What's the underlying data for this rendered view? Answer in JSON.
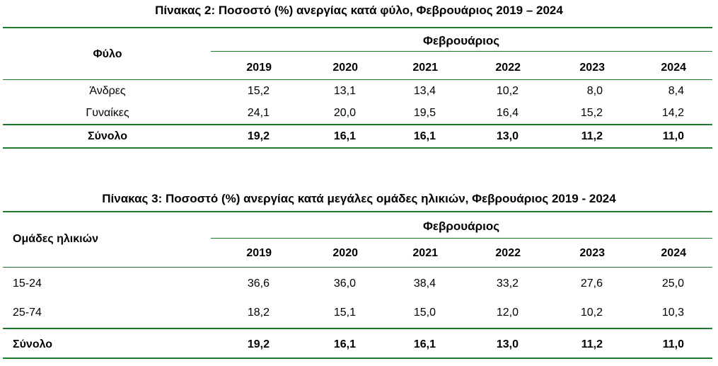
{
  "table2": {
    "title": "Πίνακας 2: Ποσοστό (%) ανεργίας κατά φύλο, Φεβρουάριος 2019 – 2024",
    "row_header": "Φύλο",
    "group_header": "Φεβρουάριος",
    "years": [
      "2019",
      "2020",
      "2021",
      "2022",
      "2023",
      "2024"
    ],
    "rows": [
      {
        "label": "Άνδρες",
        "values": [
          "15,2",
          "13,1",
          "13,4",
          "10,2",
          "8,0",
          "8,4"
        ]
      },
      {
        "label": "Γυναίκες",
        "values": [
          "24,1",
          "20,0",
          "19,5",
          "16,4",
          "15,2",
          "14,2"
        ]
      }
    ],
    "total": {
      "label": "Σύνολο",
      "values": [
        "19,2",
        "16,1",
        "16,1",
        "13,0",
        "11,2",
        "11,0"
      ]
    }
  },
  "table3": {
    "title": "Πίνακας 3: Ποσοστό (%) ανεργίας κατά μεγάλες ομάδες ηλικιών, Φεβρουάριος 2019 - 2024",
    "row_header": "Ομάδες ηλικιών",
    "group_header": "Φεβρουάριος",
    "years": [
      "2019",
      "2020",
      "2021",
      "2022",
      "2023",
      "2024"
    ],
    "rows": [
      {
        "label": "15-24",
        "values": [
          "36,6",
          "36,0",
          "38,4",
          "33,2",
          "27,6",
          "25,0"
        ]
      },
      {
        "label": "25-74",
        "values": [
          "18,2",
          "15,1",
          "15,0",
          "12,0",
          "10,2",
          "10,3"
        ]
      }
    ],
    "total": {
      "label": "Σύνολο",
      "values": [
        "19,2",
        "16,1",
        "16,1",
        "13,0",
        "11,2",
        "11,0"
      ]
    }
  },
  "colors": {
    "rule": "#1e7a2a"
  }
}
